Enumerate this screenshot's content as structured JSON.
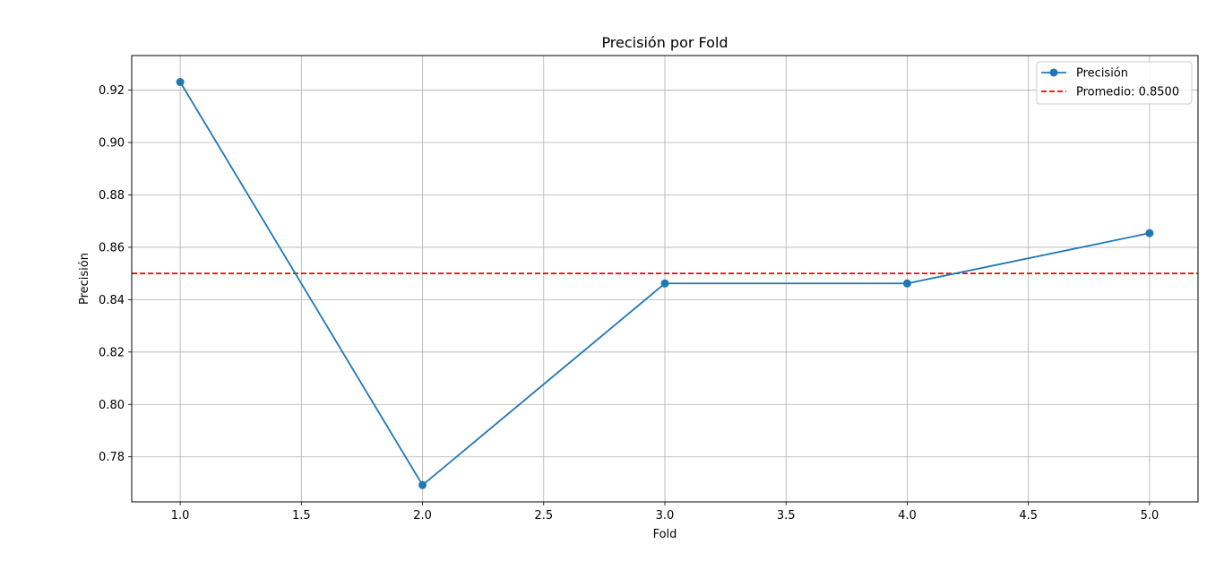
{
  "chart_data": {
    "type": "line",
    "title": "Precisión por Fold",
    "xlabel": "Fold",
    "ylabel": "Precisión",
    "xlim": [
      0.8,
      5.2
    ],
    "ylim": [
      0.7628,
      0.9332
    ],
    "x_ticks": [
      1.0,
      1.5,
      2.0,
      2.5,
      3.0,
      3.5,
      4.0,
      4.5,
      5.0
    ],
    "x_tick_labels": [
      "1.0",
      "1.5",
      "2.0",
      "2.5",
      "3.0",
      "3.5",
      "4.0",
      "4.5",
      "5.0"
    ],
    "y_ticks": [
      0.78,
      0.8,
      0.82,
      0.84,
      0.86,
      0.88,
      0.9,
      0.92
    ],
    "y_tick_labels": [
      "0.78",
      "0.80",
      "0.82",
      "0.84",
      "0.86",
      "0.88",
      "0.90",
      "0.92"
    ],
    "grid": true,
    "legend_position": "upper-right",
    "series": [
      {
        "name": "Precisión",
        "color": "#1f77b4",
        "marker": "circle",
        "x": [
          1,
          2,
          3,
          4,
          5
        ],
        "y": [
          0.9231,
          0.7692,
          0.8462,
          0.8462,
          0.8654
        ]
      }
    ],
    "reference_lines": [
      {
        "name": "Promedio: 0.8500",
        "y": 0.85,
        "color": "#ff0000",
        "style": "dashed"
      }
    ]
  }
}
